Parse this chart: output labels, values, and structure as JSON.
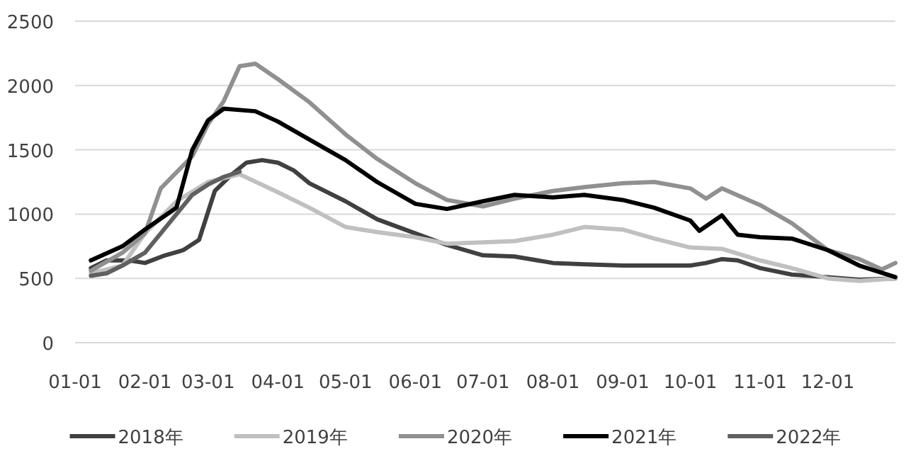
{
  "chart_data": {
    "type": "line",
    "xlim": [
      "--01-01",
      "--12-31"
    ],
    "xticks": [
      {
        "value": "--01-01",
        "label": "01-01"
      },
      {
        "value": "--02-01",
        "label": "02-01"
      },
      {
        "value": "--03-01",
        "label": "03-01"
      },
      {
        "value": "--04-01",
        "label": "04-01"
      },
      {
        "value": "--05-01",
        "label": "05-01"
      },
      {
        "value": "--06-01",
        "label": "06-01"
      },
      {
        "value": "--07-01",
        "label": "07-01"
      },
      {
        "value": "--08-01",
        "label": "08-01"
      },
      {
        "value": "--09-01",
        "label": "09-01"
      },
      {
        "value": "--10-01",
        "label": "10-01"
      },
      {
        "value": "--11-01",
        "label": "11-01"
      },
      {
        "value": "--12-01",
        "label": "12-01"
      }
    ],
    "ylim": [
      0,
      2500
    ],
    "yticks": [
      0,
      500,
      1000,
      1500,
      2000,
      2500
    ],
    "grid": "y",
    "legend": "bottom",
    "series": [
      {
        "name": "2018年",
        "color": "#404040",
        "x": [
          "--01-08",
          "--01-15",
          "--01-25",
          "--02-01",
          "--02-10",
          "--02-18",
          "--02-25",
          "--03-04",
          "--03-11",
          "--03-18",
          "--03-25",
          "--04-01",
          "--04-08",
          "--04-15",
          "--05-01",
          "--05-15",
          "--06-01",
          "--06-15",
          "--07-01",
          "--07-15",
          "--08-01",
          "--08-15",
          "--09-01",
          "--09-15",
          "--10-01",
          "--10-08",
          "--10-15",
          "--10-22",
          "--11-01",
          "--11-15",
          "--12-01",
          "--12-15",
          "--12-31"
        ],
        "values": [
          580,
          640,
          640,
          620,
          680,
          720,
          800,
          1180,
          1300,
          1400,
          1420,
          1400,
          1340,
          1240,
          1100,
          960,
          850,
          760,
          680,
          670,
          620,
          610,
          600,
          600,
          600,
          620,
          650,
          640,
          580,
          530,
          510,
          490,
          500
        ]
      },
      {
        "name": "2019年",
        "color": "#c0c0c0",
        "x": [
          "--01-08",
          "--01-22",
          "--02-01",
          "--02-15",
          "--03-01",
          "--03-15",
          "--04-01",
          "--04-15",
          "--05-01",
          "--05-15",
          "--06-01",
          "--06-15",
          "--07-01",
          "--07-15",
          "--08-01",
          "--08-15",
          "--09-01",
          "--09-15",
          "--10-01",
          "--10-15",
          "--11-01",
          "--11-15",
          "--12-01",
          "--12-15",
          "--12-31"
        ],
        "values": [
          540,
          600,
          850,
          1100,
          1250,
          1310,
          1170,
          1050,
          900,
          860,
          820,
          770,
          780,
          790,
          840,
          900,
          880,
          810,
          740,
          730,
          640,
          580,
          500,
          480,
          500
        ]
      },
      {
        "name": "2020年",
        "color": "#909090",
        "x": [
          "--01-08",
          "--01-22",
          "--02-01",
          "--02-08",
          "--02-22",
          "--03-01",
          "--03-08",
          "--03-15",
          "--03-22",
          "--04-01",
          "--04-15",
          "--05-01",
          "--05-15",
          "--06-01",
          "--06-15",
          "--07-01",
          "--07-15",
          "--08-01",
          "--08-15",
          "--09-01",
          "--09-15",
          "--10-01",
          "--10-08",
          "--10-15",
          "--11-01",
          "--11-15",
          "--12-01",
          "--12-15",
          "--12-25",
          "--12-31"
        ],
        "values": [
          560,
          700,
          850,
          1200,
          1450,
          1700,
          1880,
          2150,
          2170,
          2050,
          1870,
          1620,
          1430,
          1240,
          1110,
          1060,
          1120,
          1180,
          1210,
          1240,
          1250,
          1200,
          1120,
          1200,
          1070,
          930,
          720,
          650,
          570,
          620
        ]
      },
      {
        "name": "2021年",
        "color": "#000000",
        "x": [
          "--01-08",
          "--01-22",
          "--02-01",
          "--02-15",
          "--02-22",
          "--03-01",
          "--03-08",
          "--03-22",
          "--04-01",
          "--04-15",
          "--05-01",
          "--05-15",
          "--06-01",
          "--06-15",
          "--07-01",
          "--07-15",
          "--08-01",
          "--08-15",
          "--09-01",
          "--09-15",
          "--10-01",
          "--10-05",
          "--10-15",
          "--10-22",
          "--11-01",
          "--11-15",
          "--12-01",
          "--12-15",
          "--12-31"
        ],
        "values": [
          640,
          750,
          880,
          1050,
          1500,
          1730,
          1820,
          1800,
          1720,
          1580,
          1420,
          1250,
          1080,
          1040,
          1100,
          1150,
          1130,
          1150,
          1110,
          1050,
          950,
          870,
          990,
          840,
          820,
          810,
          720,
          600,
          510
        ]
      },
      {
        "name": "2022年",
        "color": "#606060",
        "x": [
          "--01-08",
          "--01-15",
          "--01-22",
          "--02-01",
          "--02-08",
          "--02-15",
          "--02-22",
          "--03-01",
          "--03-08",
          "--03-15"
        ],
        "values": [
          520,
          540,
          600,
          700,
          850,
          1000,
          1150,
          1230,
          1290,
          1330
        ]
      }
    ]
  }
}
